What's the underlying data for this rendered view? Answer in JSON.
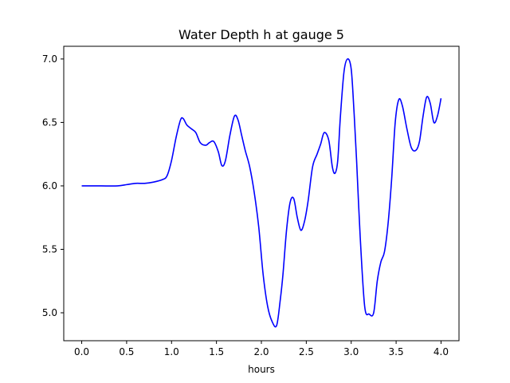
{
  "chart_data": {
    "type": "line",
    "title": "Water Depth h at gauge 5",
    "xlabel": "hours",
    "ylabel": "",
    "xlim": [
      -0.2,
      4.2
    ],
    "ylim": [
      4.78,
      7.1
    ],
    "xticks": [
      0.0,
      0.5,
      1.0,
      1.5,
      2.0,
      2.5,
      3.0,
      3.5,
      4.0
    ],
    "xtick_labels": [
      "0.0",
      "0.5",
      "1.0",
      "1.5",
      "2.0",
      "2.5",
      "3.0",
      "3.5",
      "4.0"
    ],
    "yticks": [
      5.0,
      5.5,
      6.0,
      6.5,
      7.0
    ],
    "ytick_labels": [
      "5.0",
      "5.5",
      "6.0",
      "6.5",
      "7.0"
    ],
    "grid": false,
    "series": [
      {
        "color": "#0000ff",
        "x": [
          0.0,
          0.2,
          0.4,
          0.5,
          0.6,
          0.7,
          0.8,
          0.9,
          0.95,
          1.0,
          1.05,
          1.1,
          1.13,
          1.17,
          1.22,
          1.27,
          1.32,
          1.38,
          1.42,
          1.47,
          1.52,
          1.56,
          1.6,
          1.65,
          1.7,
          1.74,
          1.78,
          1.82,
          1.87,
          1.92,
          1.97,
          2.02,
          2.07,
          2.12,
          2.17,
          2.21,
          2.24,
          2.28,
          2.32,
          2.36,
          2.4,
          2.44,
          2.48,
          2.52,
          2.57,
          2.62,
          2.66,
          2.7,
          2.75,
          2.79,
          2.82,
          2.85,
          2.88,
          2.92,
          2.96,
          3.0,
          3.03,
          3.06,
          3.1,
          3.15,
          3.2,
          3.25,
          3.29,
          3.33,
          3.37,
          3.41,
          3.45,
          3.49,
          3.53,
          3.57,
          3.62,
          3.67,
          3.72,
          3.76,
          3.8,
          3.84,
          3.88,
          3.92,
          3.96,
          4.0
        ],
        "y": [
          6.0,
          6.0,
          6.0,
          6.01,
          6.02,
          6.02,
          6.03,
          6.05,
          6.08,
          6.2,
          6.38,
          6.52,
          6.53,
          6.48,
          6.45,
          6.42,
          6.34,
          6.32,
          6.34,
          6.35,
          6.27,
          6.16,
          6.2,
          6.4,
          6.55,
          6.52,
          6.4,
          6.28,
          6.15,
          5.95,
          5.68,
          5.3,
          5.05,
          4.93,
          4.9,
          5.1,
          5.3,
          5.65,
          5.87,
          5.9,
          5.75,
          5.65,
          5.72,
          5.88,
          6.15,
          6.25,
          6.33,
          6.42,
          6.36,
          6.15,
          6.1,
          6.2,
          6.55,
          6.9,
          7.0,
          6.92,
          6.6,
          6.2,
          5.6,
          5.05,
          4.99,
          5.0,
          5.25,
          5.4,
          5.48,
          5.7,
          6.05,
          6.5,
          6.68,
          6.63,
          6.45,
          6.3,
          6.28,
          6.35,
          6.55,
          6.7,
          6.65,
          6.5,
          6.55,
          6.69
        ]
      }
    ]
  }
}
